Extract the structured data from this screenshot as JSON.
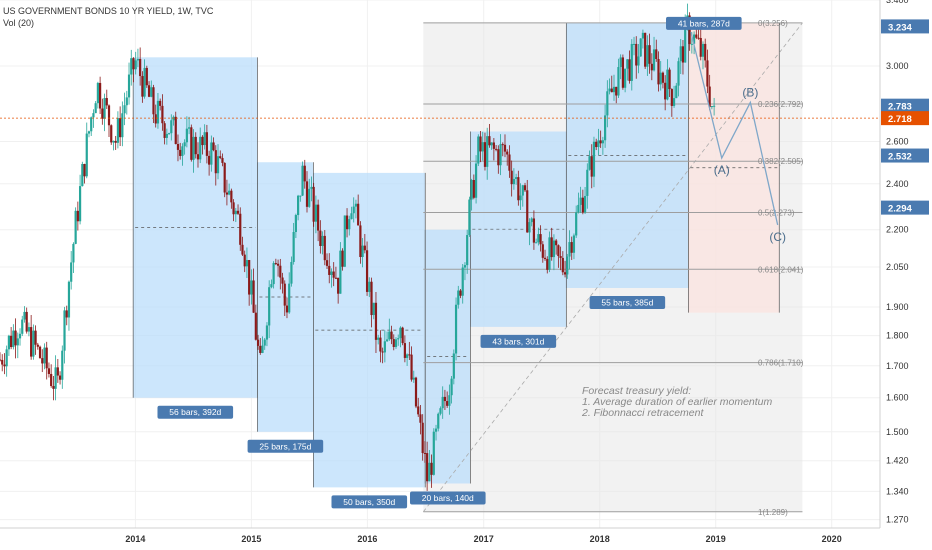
{
  "header": {
    "title": "US GOVERNMENT BONDS 10 YR YIELD, 1W, TVC",
    "volume_label": "Vol (20)"
  },
  "colors": {
    "up": "#26a69a",
    "down": "#8b1a1a",
    "box_blue": "#bbdefb",
    "box_grey": "#e8e8e8",
    "box_red": "#fbe3df",
    "badge": "#4a7ab0",
    "last_price": "#e65100",
    "fib_line": "#9e9e9e",
    "wave": "#7fa7c9"
  },
  "chart_data": {
    "type": "candlestick",
    "title": "US GOVERNMENT BONDS 10 YR YIELD, 1W, TVC",
    "y_scale": "log",
    "ylim": [
      1.25,
      3.4
    ],
    "xlim": [
      "2012-11-01",
      "2020-06-01"
    ],
    "grid": true,
    "x_ticks": [
      "2014",
      "2015",
      "2016",
      "2017",
      "2018",
      "2019",
      "2020"
    ],
    "y_ticks": [
      3.4,
      3.0,
      2.6,
      2.4,
      2.2,
      2.05,
      1.9,
      1.8,
      1.7,
      1.6,
      1.5,
      1.42,
      1.34,
      1.27
    ],
    "y_tick_labels": [
      "3.400",
      "3.000",
      "2.600",
      "2.400",
      "2.200",
      "2.050",
      "1.900",
      "1.800",
      "1.700",
      "1.600",
      "1.500",
      "1.420",
      "1.340",
      "1.270"
    ],
    "price_anchors": [
      {
        "date": "2012-11-01",
        "value": 1.72
      },
      {
        "date": "2013-01-01",
        "value": 1.85
      },
      {
        "date": "2013-05-01",
        "value": 1.63
      },
      {
        "date": "2013-09-01",
        "value": 2.9
      },
      {
        "date": "2013-11-01",
        "value": 2.6
      },
      {
        "date": "2013-12-31",
        "value": 3.03
      },
      {
        "date": "2014-03-01",
        "value": 2.75
      },
      {
        "date": "2014-06-01",
        "value": 2.6
      },
      {
        "date": "2014-09-01",
        "value": 2.55
      },
      {
        "date": "2014-12-01",
        "value": 2.2
      },
      {
        "date": "2015-01-30",
        "value": 1.68
      },
      {
        "date": "2015-03-15",
        "value": 2.15
      },
      {
        "date": "2015-04-20",
        "value": 1.88
      },
      {
        "date": "2015-06-10",
        "value": 2.45
      },
      {
        "date": "2015-08-01",
        "value": 2.2
      },
      {
        "date": "2015-10-01",
        "value": 2.0
      },
      {
        "date": "2015-11-10",
        "value": 2.35
      },
      {
        "date": "2016-02-10",
        "value": 1.72
      },
      {
        "date": "2016-04-15",
        "value": 1.85
      },
      {
        "date": "2016-07-08",
        "value": 1.37
      },
      {
        "date": "2016-09-15",
        "value": 1.65
      },
      {
        "date": "2016-11-10",
        "value": 2.2
      },
      {
        "date": "2016-12-15",
        "value": 2.55
      },
      {
        "date": "2017-03-10",
        "value": 2.55
      },
      {
        "date": "2017-06-15",
        "value": 2.15
      },
      {
        "date": "2017-09-08",
        "value": 2.05
      },
      {
        "date": "2017-11-15",
        "value": 2.38
      },
      {
        "date": "2018-02-20",
        "value": 2.92
      },
      {
        "date": "2018-05-17",
        "value": 3.1
      },
      {
        "date": "2018-08-20",
        "value": 2.85
      },
      {
        "date": "2018-10-05",
        "value": 3.23
      },
      {
        "date": "2018-11-20",
        "value": 3.06
      },
      {
        "date": "2018-12-27",
        "value": 2.72
      }
    ],
    "range_boxes": [
      {
        "start": "2013-12-25",
        "end": "2015-01-20",
        "high": 3.05,
        "low": 1.6,
        "label": "56 bars, 392d",
        "color": "blue"
      },
      {
        "start": "2015-01-20",
        "end": "2015-07-15",
        "high": 2.5,
        "low": 1.5,
        "label": "25 bars, 175d",
        "color": "blue"
      },
      {
        "start": "2015-07-15",
        "end": "2016-07-01",
        "high": 2.45,
        "low": 1.35,
        "label": "50 bars, 350d",
        "color": "blue"
      },
      {
        "start": "2016-07-01",
        "end": "2016-11-20",
        "high": 2.2,
        "low": 1.36,
        "label": "20 bars, 140d",
        "color": "blue"
      },
      {
        "start": "2016-11-20",
        "end": "2017-09-18",
        "high": 2.65,
        "low": 1.83,
        "label": "43 bars, 301d",
        "color": "blue"
      },
      {
        "start": "2017-09-18",
        "end": "2018-10-07",
        "high": 3.256,
        "low": 1.97,
        "label": "55 bars, 385d",
        "color": "blue"
      },
      {
        "start": "2018-10-07",
        "end": "2019-07-20",
        "high": 3.256,
        "low": 1.88,
        "label": "41 bars, 287d",
        "color": "red"
      },
      {
        "start": "2016-06-25",
        "end": "2019-10-01",
        "high": 3.256,
        "low": 1.289,
        "label": "",
        "color": "grey"
      }
    ],
    "fib_levels": [
      {
        "ratio": "0",
        "value": 3.256,
        "label": "0(3.256)"
      },
      {
        "ratio": "0.236",
        "value": 2.792,
        "label": "0.236(2.792)"
      },
      {
        "ratio": "0.382",
        "value": 2.505,
        "label": "0.382(2.505)"
      },
      {
        "ratio": "0.5",
        "value": 2.273,
        "label": "0.5(2.273)"
      },
      {
        "ratio": "0.618",
        "value": 2.041,
        "label": "0.618(2.041)"
      },
      {
        "ratio": "0.786",
        "value": 1.71,
        "label": "0.786(1.710)"
      },
      {
        "ratio": "1",
        "value": 1.289,
        "label": "1(1.289)"
      }
    ],
    "wave_forecast": [
      {
        "date": "2018-10-15",
        "value": 3.2,
        "label": ""
      },
      {
        "date": "2019-01-20",
        "value": 2.52,
        "label": "(A)"
      },
      {
        "date": "2019-04-20",
        "value": 2.8,
        "label": "(B)"
      },
      {
        "date": "2019-07-15",
        "value": 2.22,
        "label": "(C)"
      }
    ],
    "price_badges": [
      {
        "value": 3.234,
        "label": "3.234",
        "kind": "badge"
      },
      {
        "value": 2.783,
        "label": "2.783",
        "kind": "badge"
      },
      {
        "value": 2.718,
        "label": "2.718",
        "kind": "last"
      },
      {
        "value": 2.532,
        "label": "2.532",
        "kind": "badge"
      },
      {
        "value": 2.294,
        "label": "2.294",
        "kind": "badge"
      }
    ],
    "last_price": 2.718,
    "annotation_lines": [
      "Forecast treasury yield:",
      "1. Average duration of earlier momentum",
      "2. Fibonnacci retracement"
    ]
  }
}
